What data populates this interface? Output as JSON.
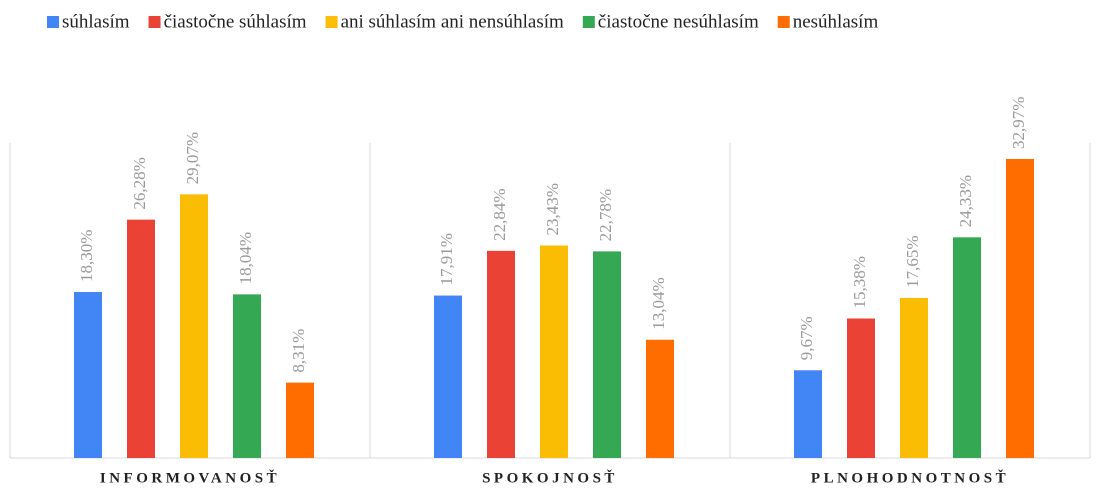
{
  "chart_data": {
    "type": "bar",
    "categories": [
      "INFORMOVANOSŤ",
      "SPOKOJNOSŤ",
      "PLNOHODNOTNOSŤ"
    ],
    "series": [
      {
        "name": "súhlasím",
        "color": "#4285f4",
        "values": [
          18.3,
          17.91,
          9.67
        ],
        "value_labels": [
          "18,30%",
          "17,91%",
          "9,67%"
        ]
      },
      {
        "name": "čiastočne súhlasím",
        "color": "#ea4335",
        "values": [
          26.28,
          22.84,
          15.38
        ],
        "value_labels": [
          "26,28%",
          "22,84%",
          "15,38%"
        ]
      },
      {
        "name": "ani súhlasím ani nensúhlasím",
        "color": "#fbbc04",
        "values": [
          29.07,
          23.43,
          17.65
        ],
        "value_labels": [
          "29,07%",
          "23,43%",
          "17,65%"
        ]
      },
      {
        "name": "čiastočne nesúhlasím",
        "color": "#34a853",
        "values": [
          18.04,
          22.78,
          24.33
        ],
        "value_labels": [
          "18,04%",
          "22,78%",
          "24,33%"
        ]
      },
      {
        "name": "nesúhlasím",
        "color": "#ff6d01",
        "values": [
          8.31,
          13.04,
          32.97
        ],
        "value_labels": [
          "8,31%",
          "13,04%",
          "32,97%"
        ]
      }
    ],
    "legend": "top"
  }
}
